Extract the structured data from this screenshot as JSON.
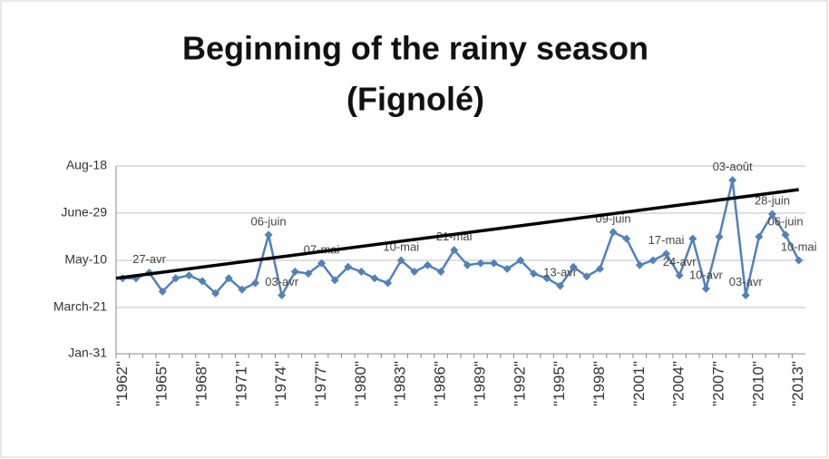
{
  "chart_data": {
    "type": "line",
    "title": [
      "Beginning of the rainy season",
      "(Fignolé)"
    ],
    "categories": [
      "\"1962\"",
      null,
      null,
      "\"1965\"",
      null,
      null,
      "\"1968\"",
      null,
      null,
      "\"1971\"",
      null,
      null,
      "\"1974\"",
      null,
      null,
      "\"1977\"",
      null,
      null,
      "\"1980\"",
      null,
      null,
      "\"1983\"",
      null,
      null,
      "\"1986\"",
      null,
      null,
      "\"1989\"",
      null,
      null,
      "\"1992\"",
      null,
      null,
      "\"1995\"",
      null,
      null,
      "\"1998\"",
      null,
      null,
      "\"2001\"",
      null,
      null,
      "\"2004\"",
      null,
      null,
      "\"2007\"",
      null,
      null,
      "\"2010\"",
      null,
      null,
      "\"2013\""
    ],
    "series": [
      {
        "name": null,
        "color": "#4f81bd",
        "values": [
          111,
          111,
          117,
          97,
          111,
          114,
          108,
          95,
          111,
          99,
          106,
          157,
          93,
          118,
          116,
          127,
          109,
          123,
          118,
          111,
          106,
          130,
          118,
          125,
          118,
          141,
          125,
          127,
          127,
          121,
          130,
          116,
          111,
          103,
          123,
          113,
          121,
          160,
          153,
          125,
          130,
          137,
          114,
          153,
          100,
          155,
          215,
          93,
          155,
          179,
          157,
          130
        ],
        "value_labels": [
          null,
          null,
          "27-avr",
          null,
          null,
          null,
          null,
          null,
          null,
          null,
          null,
          "06-juin",
          "03-avr",
          null,
          null,
          "07-mai",
          null,
          null,
          null,
          null,
          null,
          "10-mai",
          null,
          null,
          null,
          "21-mai",
          null,
          null,
          null,
          null,
          null,
          null,
          null,
          "13-avr",
          null,
          null,
          null,
          "09-juin",
          null,
          null,
          null,
          "17-mai",
          "24-avr",
          null,
          "10-avr",
          null,
          "03-août",
          "03-avr",
          null,
          "28-juin",
          "06-juin",
          "10-mai"
        ]
      }
    ],
    "trendline": {
      "values": [
        111,
        205
      ],
      "color": "#000000"
    },
    "ylim": [
      31,
      230
    ],
    "yticks": [
      {
        "value": 31,
        "label": "Jan-31"
      },
      {
        "value": 80,
        "label": "March-21"
      },
      {
        "value": 130,
        "label": "May-10"
      },
      {
        "value": 180,
        "label": "June-29"
      },
      {
        "value": 230,
        "label": "Aug-18"
      }
    ],
    "grid": true
  }
}
